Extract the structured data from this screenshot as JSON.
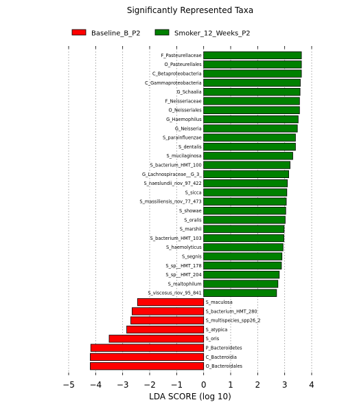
{
  "chart_data": {
    "type": "bar",
    "orientation": "horizontal",
    "title": "Significantly Represented Taxa",
    "xlabel": "LDA SCORE (log 10)",
    "ylabel": "",
    "xlim": [
      -5,
      4
    ],
    "xticks": [
      -5,
      -4,
      -3,
      -2,
      -1,
      0,
      1,
      2,
      3,
      4
    ],
    "grid": "vertical dotted",
    "legend_position": "top",
    "series": [
      {
        "name": "Baseline_B_P2",
        "color": "#ff0000"
      },
      {
        "name": "Smoker_12_Weeks_P2",
        "color": "#008000"
      }
    ],
    "bars": [
      {
        "label": "F_Pasteurellaceae",
        "value": 3.62,
        "series": "Smoker_12_Weeks_P2"
      },
      {
        "label": "O_Pasteurellales",
        "value": 3.62,
        "series": "Smoker_12_Weeks_P2"
      },
      {
        "label": "C_Betaproteobacteria",
        "value": 3.62,
        "series": "Smoker_12_Weeks_P2"
      },
      {
        "label": "C_Gammaproteobacteria",
        "value": 3.58,
        "series": "Smoker_12_Weeks_P2"
      },
      {
        "label": "G_Schaalia",
        "value": 3.57,
        "series": "Smoker_12_Weeks_P2"
      },
      {
        "label": "F_Neisseriaceae",
        "value": 3.55,
        "series": "Smoker_12_Weeks_P2"
      },
      {
        "label": "O_Neisseriales",
        "value": 3.55,
        "series": "Smoker_12_Weeks_P2"
      },
      {
        "label": "G_Haemophilus",
        "value": 3.5,
        "series": "Smoker_12_Weeks_P2"
      },
      {
        "label": "G_Neisseria",
        "value": 3.47,
        "series": "Smoker_12_Weeks_P2"
      },
      {
        "label": "S_parainfluenzae",
        "value": 3.4,
        "series": "Smoker_12_Weeks_P2"
      },
      {
        "label": "S_dentalis",
        "value": 3.4,
        "series": "Smoker_12_Weeks_P2"
      },
      {
        "label": "S_mucilaginosa",
        "value": 3.3,
        "series": "Smoker_12_Weeks_P2"
      },
      {
        "label": "S_bacterium_HMT_100",
        "value": 3.2,
        "series": "Smoker_12_Weeks_P2"
      },
      {
        "label": "G_Lachnospiraceae__G_3_",
        "value": 3.15,
        "series": "Smoker_12_Weeks_P2"
      },
      {
        "label": "S_naeslundii_nov_97_422",
        "value": 3.1,
        "series": "Smoker_12_Weeks_P2"
      },
      {
        "label": "S_sicca",
        "value": 3.08,
        "series": "Smoker_12_Weeks_P2"
      },
      {
        "label": "S_massiliensis_nov_77_473",
        "value": 3.06,
        "series": "Smoker_12_Weeks_P2"
      },
      {
        "label": "S_showae",
        "value": 3.04,
        "series": "Smoker_12_Weeks_P2"
      },
      {
        "label": "S_oralis",
        "value": 3.02,
        "series": "Smoker_12_Weeks_P2"
      },
      {
        "label": "S_marshii",
        "value": 2.98,
        "series": "Smoker_12_Weeks_P2"
      },
      {
        "label": "S_bacterium_HMT_103",
        "value": 2.97,
        "series": "Smoker_12_Weeks_P2"
      },
      {
        "label": "S_haemolyticus",
        "value": 2.94,
        "series": "Smoker_12_Weeks_P2"
      },
      {
        "label": "S_segnis",
        "value": 2.9,
        "series": "Smoker_12_Weeks_P2"
      },
      {
        "label": "S_sp__HMT_178",
        "value": 2.88,
        "series": "Smoker_12_Weeks_P2"
      },
      {
        "label": "S_sp__HMT_204",
        "value": 2.8,
        "series": "Smoker_12_Weeks_P2"
      },
      {
        "label": "S_maltophilum",
        "value": 2.75,
        "series": "Smoker_12_Weeks_P2"
      },
      {
        "label": "S_viscosus_nov_95_841",
        "value": 2.7,
        "series": "Smoker_12_Weeks_P2"
      },
      {
        "label": "S_maculosa",
        "value": -2.45,
        "series": "Baseline_B_P2"
      },
      {
        "label": "S_bacterium_HMT_280",
        "value": -2.65,
        "series": "Baseline_B_P2"
      },
      {
        "label": "S_multispecies_spp26_2",
        "value": -2.7,
        "series": "Baseline_B_P2"
      },
      {
        "label": "S_atypica",
        "value": -2.85,
        "series": "Baseline_B_P2"
      },
      {
        "label": "S_oris",
        "value": -3.5,
        "series": "Baseline_B_P2"
      },
      {
        "label": "P_Bacteroidetes",
        "value": -4.18,
        "series": "Baseline_B_P2"
      },
      {
        "label": "C_Bacteroidia",
        "value": -4.2,
        "series": "Baseline_B_P2"
      },
      {
        "label": "O_Bacteroidales",
        "value": -4.2,
        "series": "Baseline_B_P2"
      }
    ]
  }
}
